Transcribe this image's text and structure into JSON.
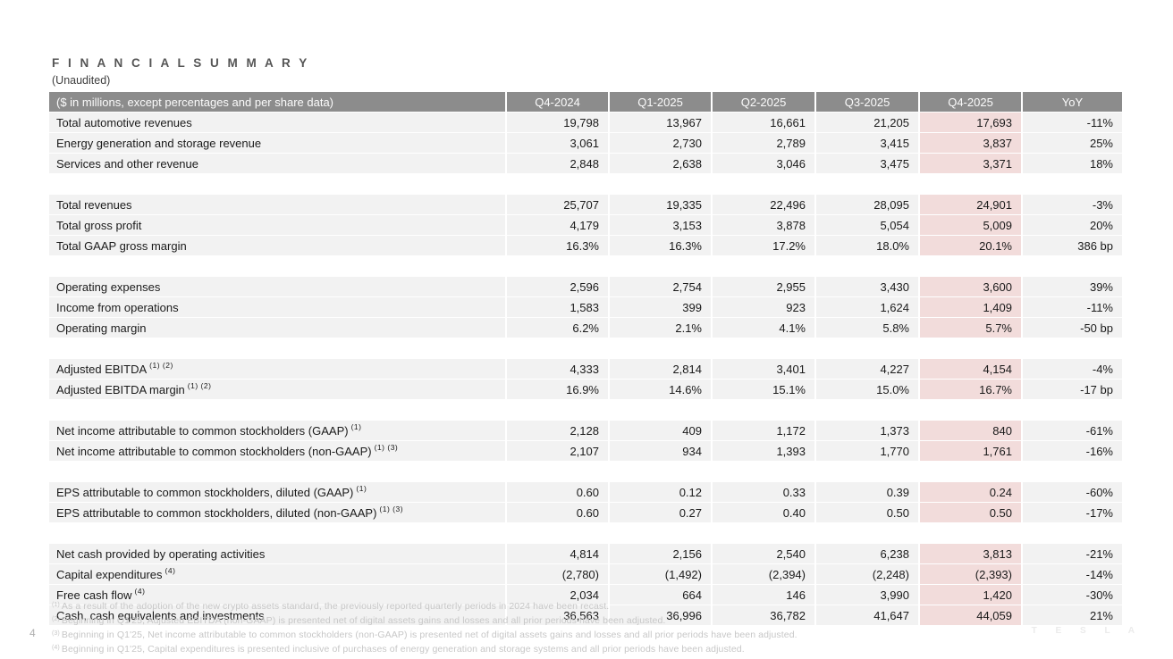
{
  "page": {
    "title": "F I N A N C I A L   S U M M A R Y",
    "subtitle": "(Unaudited)",
    "page_number": "4",
    "brand": "T E S L A"
  },
  "colors": {
    "header_bg": "#8c8c8c",
    "row_bg": "#f2f2f2",
    "highlight_bg": "#f2dcdb",
    "header_text": "#fbfbfb",
    "footnote_text": "#c7c7c7"
  },
  "table": {
    "header": {
      "label": "($ in millions, except percentages and per share data)",
      "columns": [
        "Q4-2024",
        "Q1-2025",
        "Q2-2025",
        "Q3-2025",
        "Q4-2025",
        "YoY"
      ],
      "highlighted_column": "Q4-2025"
    },
    "sections": [
      {
        "rows": [
          {
            "label": "Total automotive revenues",
            "sup": "",
            "values": [
              "19,798",
              "13,967",
              "16,661",
              "21,205",
              "17,693"
            ],
            "yoy": "-11%"
          },
          {
            "label": "Energy generation and storage revenue",
            "sup": "",
            "values": [
              "3,061",
              "2,730",
              "2,789",
              "3,415",
              "3,837"
            ],
            "yoy": "25%"
          },
          {
            "label": "Services and other revenue",
            "sup": "",
            "values": [
              "2,848",
              "2,638",
              "3,046",
              "3,475",
              "3,371"
            ],
            "yoy": "18%"
          }
        ]
      },
      {
        "rows": [
          {
            "label": "Total revenues",
            "sup": "",
            "values": [
              "25,707",
              "19,335",
              "22,496",
              "28,095",
              "24,901"
            ],
            "yoy": "-3%"
          },
          {
            "label": "Total gross profit",
            "sup": "",
            "values": [
              "4,179",
              "3,153",
              "3,878",
              "5,054",
              "5,009"
            ],
            "yoy": "20%"
          },
          {
            "label": "Total GAAP gross margin",
            "sup": "",
            "values": [
              "16.3%",
              "16.3%",
              "17.2%",
              "18.0%",
              "20.1%"
            ],
            "yoy": "386 bp"
          }
        ]
      },
      {
        "rows": [
          {
            "label": "Operating expenses",
            "sup": "",
            "values": [
              "2,596",
              "2,754",
              "2,955",
              "3,430",
              "3,600"
            ],
            "yoy": "39%"
          },
          {
            "label": "Income from operations",
            "sup": "",
            "values": [
              "1,583",
              "399",
              "923",
              "1,624",
              "1,409"
            ],
            "yoy": "-11%"
          },
          {
            "label": "Operating margin",
            "sup": "",
            "values": [
              "6.2%",
              "2.1%",
              "4.1%",
              "5.8%",
              "5.7%"
            ],
            "yoy": "-50 bp"
          }
        ]
      },
      {
        "rows": [
          {
            "label": "Adjusted EBITDA",
            "sup": "(1) (2)",
            "values": [
              "4,333",
              "2,814",
              "3,401",
              "4,227",
              "4,154"
            ],
            "yoy": "-4%"
          },
          {
            "label": "Adjusted EBITDA margin",
            "sup": "(1) (2)",
            "values": [
              "16.9%",
              "14.6%",
              "15.1%",
              "15.0%",
              "16.7%"
            ],
            "yoy": "-17 bp"
          }
        ]
      },
      {
        "rows": [
          {
            "label": "Net income attributable to common stockholders (GAAP)",
            "sup": "(1)",
            "values": [
              "2,128",
              "409",
              "1,172",
              "1,373",
              "840"
            ],
            "yoy": "-61%"
          },
          {
            "label": "Net income attributable to common stockholders (non-GAAP)",
            "sup": "(1) (3)",
            "values": [
              "2,107",
              "934",
              "1,393",
              "1,770",
              "1,761"
            ],
            "yoy": "-16%"
          }
        ]
      },
      {
        "rows": [
          {
            "label": "EPS attributable to common stockholders, diluted (GAAP)",
            "sup": "(1)",
            "values": [
              "0.60",
              "0.12",
              "0.33",
              "0.39",
              "0.24"
            ],
            "yoy": "-60%"
          },
          {
            "label": "EPS attributable to common stockholders, diluted (non-GAAP)",
            "sup": "(1) (3)",
            "values": [
              "0.60",
              "0.27",
              "0.40",
              "0.50",
              "0.50"
            ],
            "yoy": "-17%"
          }
        ]
      },
      {
        "rows": [
          {
            "label": "Net cash provided by operating activities",
            "sup": "",
            "values": [
              "4,814",
              "2,156",
              "2,540",
              "6,238",
              "3,813"
            ],
            "yoy": "-21%"
          },
          {
            "label": "Capital expenditures",
            "sup": "(4)",
            "values": [
              "(2,780)",
              "(1,492)",
              "(2,394)",
              "(2,248)",
              "(2,393)"
            ],
            "yoy": "-14%"
          },
          {
            "label": "Free cash flow",
            "sup": "(4)",
            "values": [
              "2,034",
              "664",
              "146",
              "3,990",
              "1,420"
            ],
            "yoy": "-30%"
          },
          {
            "label": "Cash, cash equivalents and investments",
            "sup": "",
            "values": [
              "36,563",
              "36,996",
              "36,782",
              "41,647",
              "44,059"
            ],
            "yoy": "21%"
          }
        ]
      }
    ]
  },
  "footnotes": [
    {
      "sup": "(1)",
      "text": "As a result of the adoption of the new crypto assets standard, the previously reported quarterly periods in 2024 have been recast."
    },
    {
      "sup": "(2)",
      "text": "Beginning in Q1'25, Adjusted EBITDA (non-GAAP) is presented net of digital assets gains and losses and all prior periods have been adjusted."
    },
    {
      "sup": "(3)",
      "text": "Beginning in Q1'25, Net income attributable to common stockholders (non-GAAP) is presented net of digital assets gains and losses and all prior periods have been adjusted."
    },
    {
      "sup": "(4)",
      "text": "Beginning in Q1'25, Capital expenditures is presented inclusive of purchases of energy generation and storage systems and all prior periods have been adjusted."
    }
  ]
}
